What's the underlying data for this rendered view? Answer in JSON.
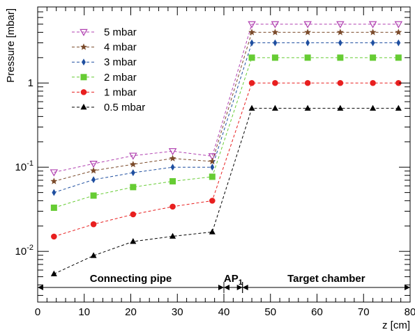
{
  "chart_data": {
    "type": "line",
    "title": "",
    "xlabel": "z [cm]",
    "ylabel": "Pressure [mbar]",
    "x_scale": "linear",
    "y_scale": "log",
    "xlim": [
      0,
      80
    ],
    "ylim": [
      0.0025,
      8
    ],
    "x_ticks": [
      0,
      10,
      20,
      30,
      40,
      50,
      60,
      70,
      80
    ],
    "x_tick_labels": [
      "0",
      "10",
      "20",
      "30",
      "40",
      "50",
      "60",
      "70",
      "80"
    ],
    "y_ticks": [
      0.01,
      0.1,
      1
    ],
    "y_tick_labels": [
      {
        "base": "10",
        "exp": "-2"
      },
      {
        "base": "10",
        "exp": "-1"
      },
      {
        "base": "1",
        "exp": ""
      }
    ],
    "grid": false,
    "legend_position": "top-left",
    "x": [
      3.5,
      12,
      20.5,
      29,
      37.5,
      46,
      51,
      58,
      65,
      72,
      77.5
    ],
    "series": [
      {
        "name": "5 mbar",
        "marker": "triangle-down-open",
        "color": "#b040b0",
        "values": [
          0.087,
          0.11,
          0.137,
          0.155,
          0.135,
          5.0,
          5.0,
          5.0,
          5.0,
          5.0,
          5.0
        ]
      },
      {
        "name": "4 mbar",
        "marker": "star",
        "color": "#7a4a2a",
        "values": [
          0.068,
          0.091,
          0.108,
          0.127,
          0.117,
          4.0,
          4.0,
          4.0,
          4.0,
          4.0,
          4.0
        ]
      },
      {
        "name": "3 mbar",
        "marker": "diamond",
        "color": "#1f4fa0",
        "values": [
          0.05,
          0.071,
          0.086,
          0.1,
          0.1,
          3.0,
          3.0,
          3.0,
          3.0,
          3.0,
          3.0
        ]
      },
      {
        "name": "2 mbar",
        "marker": "square",
        "color": "#66cc33",
        "values": [
          0.033,
          0.046,
          0.058,
          0.068,
          0.077,
          2.0,
          2.0,
          2.0,
          2.0,
          2.0,
          2.0
        ]
      },
      {
        "name": "1 mbar",
        "marker": "circle",
        "color": "#e81f1f",
        "values": [
          0.015,
          0.021,
          0.0275,
          0.034,
          0.04,
          1.0,
          1.0,
          1.0,
          1.0,
          1.0,
          1.0
        ]
      },
      {
        "name": "0.5 mbar",
        "marker": "triangle-up",
        "color": "#000000",
        "values": [
          0.0054,
          0.0089,
          0.0131,
          0.0151,
          0.017,
          0.5,
          0.5,
          0.5,
          0.5,
          0.5,
          0.5
        ]
      }
    ],
    "regions": [
      {
        "label": "Connecting pipe",
        "sub": "",
        "from": 0,
        "to": 40
      },
      {
        "label": "AP",
        "sub": "1",
        "from": 40,
        "to": 44
      },
      {
        "label": "Target chamber",
        "sub": "",
        "from": 44,
        "to": 80
      }
    ]
  }
}
